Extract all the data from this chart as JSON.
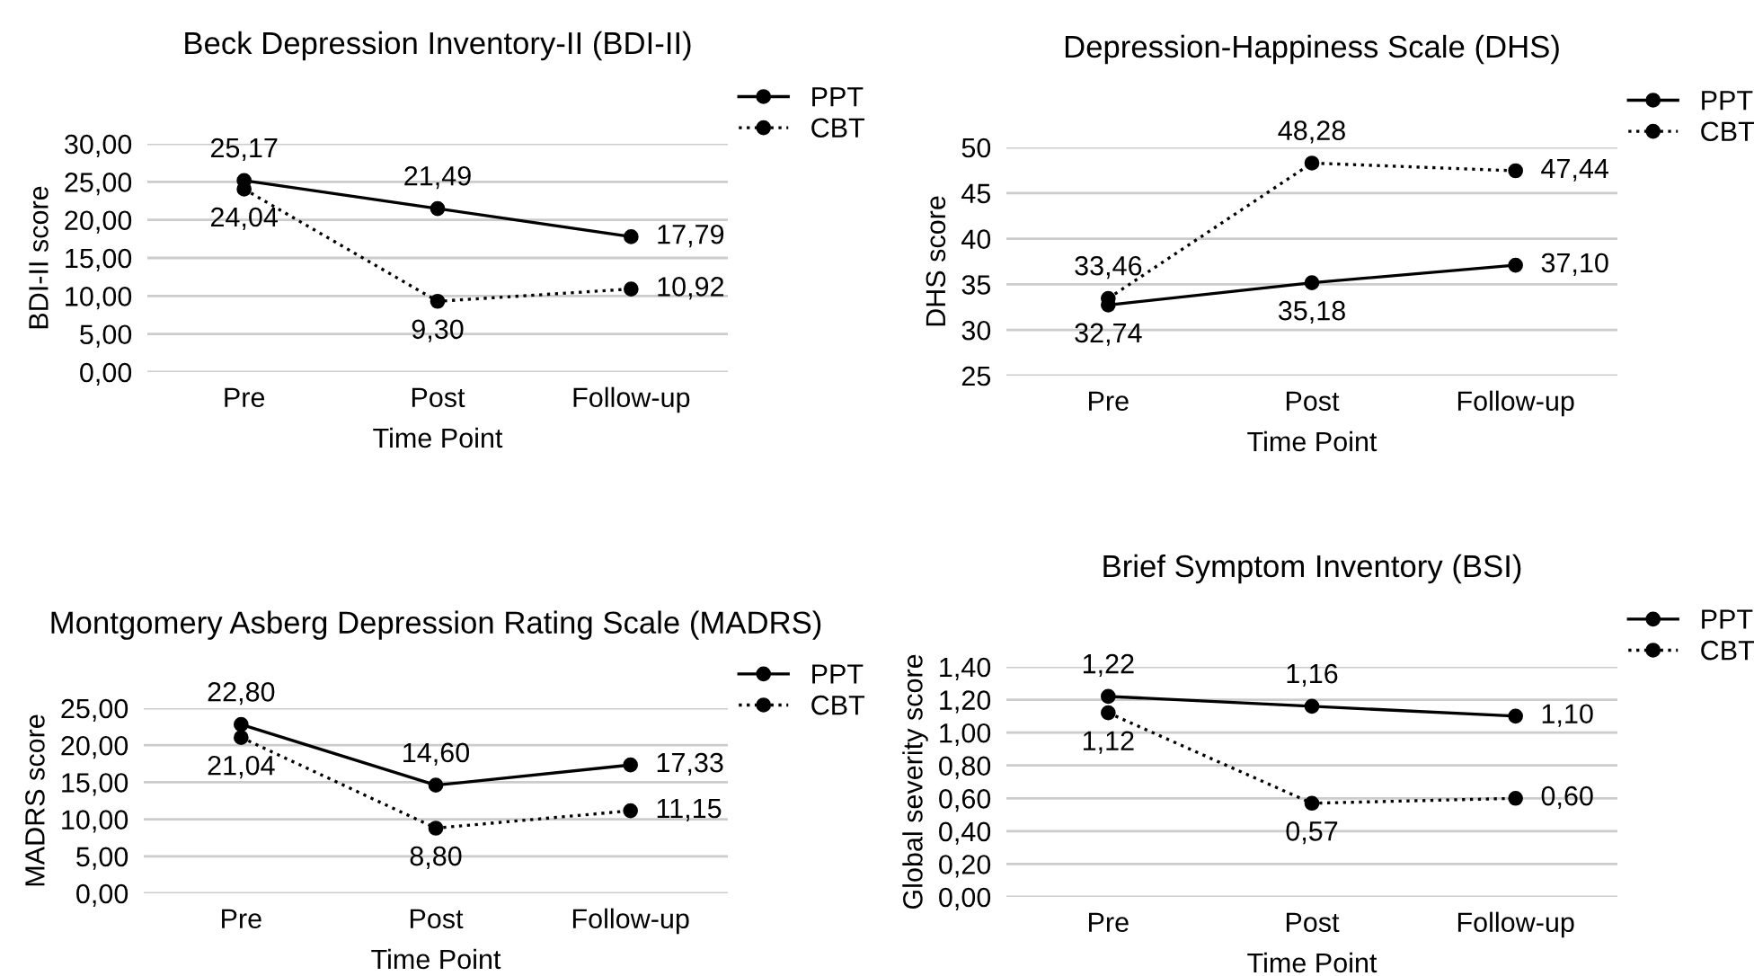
{
  "chart_data": [
    {
      "type": "line",
      "title": "Beck Depression Inventory-II (BDI-II)",
      "xlabel": "Time Point",
      "ylabel": "BDI-II score",
      "categories": [
        "Pre",
        "Post",
        "Follow-up"
      ],
      "series": [
        {
          "name": "PPT",
          "color": "#000000",
          "line_style": "solid",
          "values": [
            25.17,
            21.49,
            17.79
          ],
          "value_labels": [
            "25,17",
            "21,49",
            "17,79"
          ]
        },
        {
          "name": "CBT",
          "color": "#000000",
          "line_style": "dotted",
          "values": [
            24.04,
            9.3,
            10.92
          ],
          "value_labels": [
            "24,04",
            "9,30",
            "10,92"
          ]
        }
      ],
      "ylim": [
        0,
        30
      ],
      "yticks": [
        {
          "value": 0,
          "label": "0,00"
        },
        {
          "value": 5,
          "label": "5,00"
        },
        {
          "value": 10,
          "label": "10,00"
        },
        {
          "value": 15,
          "label": "15,00"
        },
        {
          "value": 20,
          "label": "20,00"
        },
        {
          "value": 25,
          "label": "25,00"
        },
        {
          "value": 30,
          "label": "30,00"
        }
      ],
      "grid": "y",
      "legend": "top right",
      "marker": "circle"
    },
    {
      "type": "line",
      "title": "Depression-Happiness Scale (DHS)",
      "xlabel": "Time Point",
      "ylabel": "DHS score",
      "categories": [
        "Pre",
        "Post",
        "Follow-up"
      ],
      "series": [
        {
          "name": "PPT",
          "color": "#000000",
          "line_style": "solid",
          "values": [
            32.74,
            35.18,
            37.1
          ],
          "value_labels": [
            "32,74",
            "35,18",
            "37,10"
          ]
        },
        {
          "name": "CBT",
          "color": "#000000",
          "line_style": "dotted",
          "values": [
            33.46,
            48.28,
            47.44
          ],
          "value_labels": [
            "33,46",
            "48,28",
            "47,44"
          ]
        }
      ],
      "ylim": [
        25,
        50
      ],
      "yticks": [
        25,
        30,
        35,
        40,
        45,
        50
      ],
      "grid": "y",
      "legend": "top right",
      "marker": "circle"
    },
    {
      "type": "line",
      "title": "Montgomery Asberg Depression Rating Scale (MADRS)",
      "xlabel": "Time Point",
      "ylabel": "MADRS score",
      "categories": [
        "Pre",
        "Post",
        "Follow-up"
      ],
      "series": [
        {
          "name": "PPT",
          "color": "#000000",
          "line_style": "solid",
          "values": [
            22.8,
            14.6,
            17.33
          ],
          "value_labels": [
            "22,80",
            "14,60",
            "17,33"
          ]
        },
        {
          "name": "CBT",
          "color": "#000000",
          "line_style": "dotted",
          "values": [
            21.04,
            8.8,
            11.15
          ],
          "value_labels": [
            "21,04",
            "8,80",
            "11,15"
          ]
        }
      ],
      "ylim": [
        0,
        25
      ],
      "yticks": [
        {
          "value": 0,
          "label": "0,00"
        },
        {
          "value": 5,
          "label": "5,00"
        },
        {
          "value": 10,
          "label": "10,00"
        },
        {
          "value": 15,
          "label": "15,00"
        },
        {
          "value": 20,
          "label": "20,00"
        },
        {
          "value": 25,
          "label": "25,00"
        }
      ],
      "grid": "y",
      "legend": "top right",
      "marker": "circle"
    },
    {
      "type": "line",
      "title": "Brief Symptom Inventory (BSI)",
      "xlabel": "Time Point",
      "ylabel": "Global severity score",
      "categories": [
        "Pre",
        "Post",
        "Follow-up"
      ],
      "series": [
        {
          "name": "PPT",
          "color": "#000000",
          "line_style": "solid",
          "values": [
            1.22,
            1.16,
            1.1
          ],
          "value_labels": [
            "1,22",
            "1,16",
            "1,10"
          ]
        },
        {
          "name": "CBT",
          "color": "#000000",
          "line_style": "dotted",
          "values": [
            1.12,
            0.57,
            0.6
          ],
          "value_labels": [
            "1,12",
            "0,57",
            "0,60"
          ]
        }
      ],
      "ylim": [
        0,
        1.4
      ],
      "yticks": [
        {
          "value": 0,
          "label": "0,00"
        },
        {
          "value": 0.2,
          "label": "0,20"
        },
        {
          "value": 0.4,
          "label": "0,40"
        },
        {
          "value": 0.6,
          "label": "0,60"
        },
        {
          "value": 0.8,
          "label": "0,80"
        },
        {
          "value": 1.0,
          "label": "1,00"
        },
        {
          "value": 1.2,
          "label": "1,20"
        },
        {
          "value": 1.4,
          "label": "1,40"
        }
      ],
      "grid": "y",
      "legend": "top right",
      "marker": "circle"
    }
  ]
}
